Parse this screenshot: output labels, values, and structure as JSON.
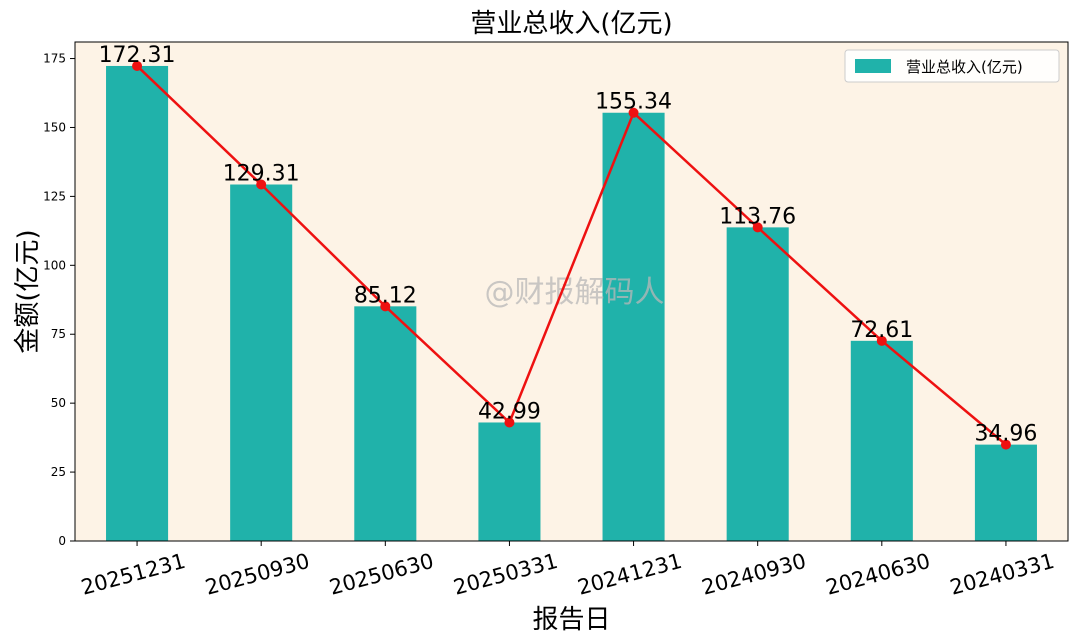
{
  "chart_data": {
    "type": "bar",
    "title": "营业总收入(亿元)",
    "xlabel": "报告日",
    "ylabel": "金额(亿元)",
    "categories": [
      "20251231",
      "20250930",
      "20250630",
      "20250331",
      "20241231",
      "20240930",
      "20240630",
      "20240331"
    ],
    "series": [
      {
        "name": "营业总收入(亿元)",
        "type": "bar",
        "values": [
          172.31,
          129.31,
          85.12,
          42.99,
          155.34,
          113.76,
          72.61,
          34.96
        ],
        "color": "#20b2aa"
      },
      {
        "type": "line",
        "values": [
          172.31,
          129.31,
          85.12,
          42.99,
          155.34,
          113.76,
          72.61,
          34.96
        ],
        "color": "#ee1111"
      }
    ],
    "data_labels": [
      "172.31",
      "129.31",
      "85.12",
      "42.99",
      "155.34",
      "113.76",
      "72.61",
      "34.96"
    ],
    "ylim": [
      0,
      181
    ],
    "yticks": [
      0,
      25,
      50,
      75,
      100,
      125,
      150,
      175
    ],
    "legend": "top-right",
    "grid": false,
    "background_color": "#fdf3e6",
    "watermark": "@财报解码人"
  }
}
